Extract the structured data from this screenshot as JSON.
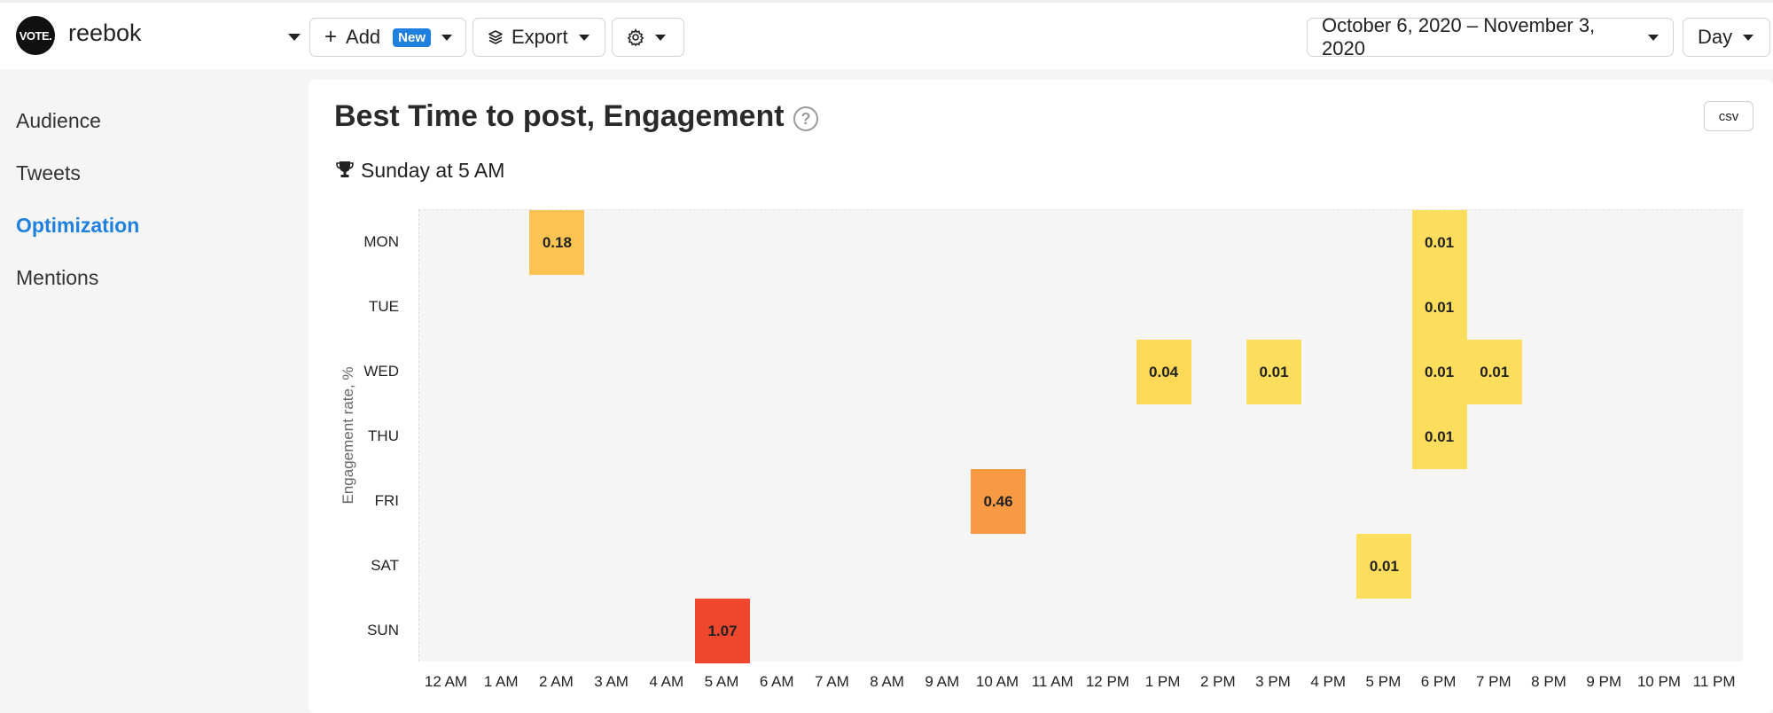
{
  "header": {
    "logo_text": "VOTE.",
    "account_name": "reebok",
    "add_label": "Add",
    "new_badge": "New",
    "export_label": "Export",
    "date_range": "October 6, 2020 – November 3, 2020",
    "granularity": "Day",
    "icons": [
      "plus-icon",
      "layers-icon",
      "gear-icon",
      "chevron-down-icon"
    ]
  },
  "sidebar": {
    "items": [
      {
        "label": "Audience",
        "active": false
      },
      {
        "label": "Tweets",
        "active": false
      },
      {
        "label": "Optimization",
        "active": true
      },
      {
        "label": "Mentions",
        "active": false
      }
    ],
    "accent": "#1f80e0"
  },
  "main": {
    "title": "Best Time to post, Engagement",
    "csv_label": "csv",
    "best_time": "Sunday at 5 AM"
  },
  "chart_data": {
    "type": "heatmap",
    "title": "Best Time to post, Engagement",
    "ylabel": "Engagement rate, %",
    "xlabel": "",
    "rows": [
      "MON",
      "TUE",
      "WED",
      "THU",
      "FRI",
      "SAT",
      "SUN"
    ],
    "columns": [
      "12 AM",
      "1 AM",
      "2 AM",
      "3 AM",
      "4 AM",
      "5 AM",
      "6 AM",
      "7 AM",
      "8 AM",
      "9 AM",
      "10 AM",
      "11 AM",
      "12 PM",
      "1 PM",
      "2 PM",
      "3 PM",
      "4 PM",
      "5 PM",
      "6 PM",
      "7 PM",
      "8 PM",
      "9 PM",
      "10 PM",
      "11 PM"
    ],
    "cells": [
      {
        "day": "MON",
        "hour": "2 AM",
        "value": 0.18,
        "label": "0.18",
        "color": "#fbc452"
      },
      {
        "day": "MON",
        "hour": "6 PM",
        "value": 0.01,
        "label": "0.01",
        "color": "#fddd5c"
      },
      {
        "day": "TUE",
        "hour": "6 PM",
        "value": 0.01,
        "label": "0.01",
        "color": "#fddd5c"
      },
      {
        "day": "WED",
        "hour": "1 PM",
        "value": 0.04,
        "label": "0.04",
        "color": "#fdd957"
      },
      {
        "day": "WED",
        "hour": "3 PM",
        "value": 0.01,
        "label": "0.01",
        "color": "#fddd5c"
      },
      {
        "day": "WED",
        "hour": "6 PM",
        "value": 0.01,
        "label": "0.01",
        "color": "#fddd5c"
      },
      {
        "day": "WED",
        "hour": "7 PM",
        "value": 0.01,
        "label": "0.01",
        "color": "#fddd5c"
      },
      {
        "day": "THU",
        "hour": "6 PM",
        "value": 0.01,
        "label": "0.01",
        "color": "#fddd5c"
      },
      {
        "day": "FRI",
        "hour": "10 AM",
        "value": 0.46,
        "label": "0.46",
        "color": "#f79a43"
      },
      {
        "day": "SAT",
        "hour": "5 PM",
        "value": 0.01,
        "label": "0.01",
        "color": "#fddd5c"
      },
      {
        "day": "SUN",
        "hour": "5 AM",
        "value": 1.07,
        "label": "1.07",
        "color": "#ef472e"
      }
    ],
    "empty_color": "#f5f5f5",
    "legend": "none",
    "grid": false
  }
}
